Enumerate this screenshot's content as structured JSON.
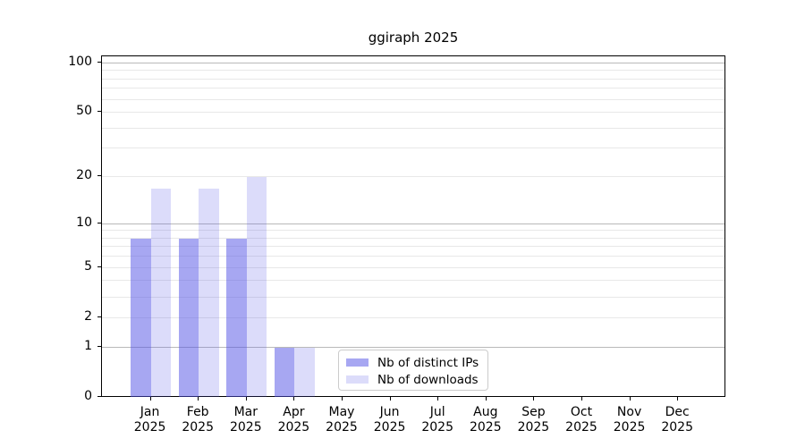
{
  "figure": {
    "title": "ggiraph 2025"
  },
  "chart_data": {
    "type": "bar",
    "title": "ggiraph 2025",
    "categories": [
      "Jan 2025",
      "Feb 2025",
      "Mar 2025",
      "Apr 2025",
      "May 2025",
      "Jun 2025",
      "Jul 2025",
      "Aug 2025",
      "Sep 2025",
      "Oct 2025",
      "Nov 2025",
      "Dec 2025"
    ],
    "x_tick_lines": [
      [
        "Jan",
        "2025"
      ],
      [
        "Feb",
        "2025"
      ],
      [
        "Mar",
        "2025"
      ],
      [
        "Apr",
        "2025"
      ],
      [
        "May",
        "2025"
      ],
      [
        "Jun",
        "2025"
      ],
      [
        "Jul",
        "2025"
      ],
      [
        "Aug",
        "2025"
      ],
      [
        "Sep",
        "2025"
      ],
      [
        "Oct",
        "2025"
      ],
      [
        "Nov",
        "2025"
      ],
      [
        "Dec",
        "2025"
      ]
    ],
    "series": [
      {
        "name": "Nb of distinct IPs",
        "color": "rgba(80,80,230,0.5)",
        "values": [
          8,
          8,
          8,
          1,
          0,
          0,
          0,
          0,
          0,
          0,
          0,
          0
        ]
      },
      {
        "name": "Nb of downloads",
        "color": "rgba(80,80,230,0.2)",
        "values": [
          17,
          17,
          20,
          1,
          0,
          0,
          0,
          0,
          0,
          0,
          0,
          0
        ]
      }
    ],
    "xlabel": "",
    "ylabel": "",
    "y_axis": {
      "scale": "log1p",
      "tick_labels": [
        "0",
        "1",
        "2",
        "5",
        "10",
        "20",
        "50",
        "100"
      ],
      "ticks": [
        0,
        1,
        2,
        5,
        10,
        20,
        50,
        100
      ],
      "major_gridlines": [
        1,
        10,
        100
      ],
      "minor_gridlines": [
        2,
        3,
        4,
        5,
        6,
        7,
        8,
        9,
        20,
        30,
        40,
        50,
        60,
        70,
        80,
        90
      ],
      "range": [
        0,
        110
      ]
    },
    "grid": true,
    "legend_position": "lower center"
  },
  "colors": {
    "bar_distinct_ips": "rgba(80,80,230,0.5)",
    "bar_downloads": "rgba(80,80,230,0.2)",
    "major_grid": "#b9b9b9",
    "minor_grid": "#e8e8e8",
    "spine": "#000000",
    "background": "#ffffff"
  }
}
